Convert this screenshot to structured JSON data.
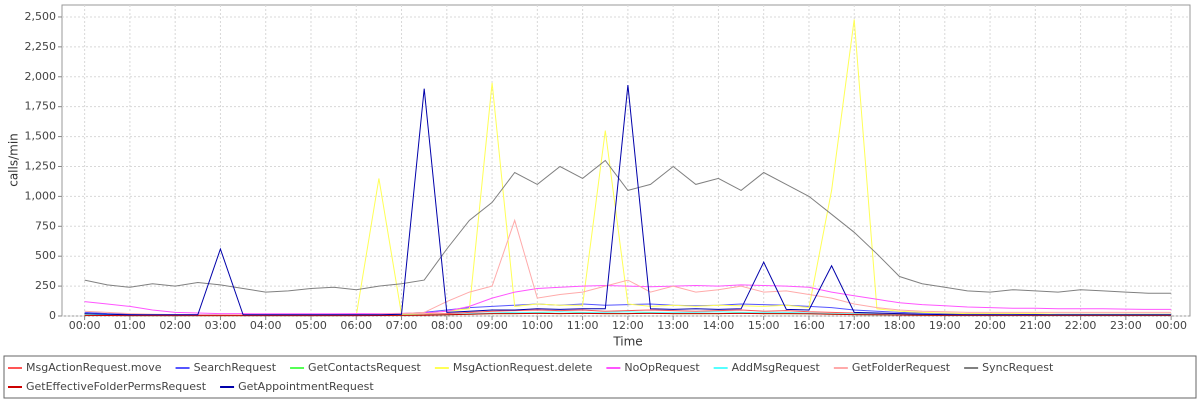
{
  "chart_data": {
    "type": "line",
    "x_label": "Time",
    "y_label": "calls/min",
    "x": [
      0,
      30,
      60,
      90,
      120,
      150,
      180,
      210,
      240,
      270,
      300,
      330,
      360,
      390,
      420,
      450,
      480,
      510,
      540,
      570,
      600,
      630,
      660,
      690,
      720,
      750,
      780,
      810,
      840,
      870,
      900,
      930,
      960,
      990,
      1020,
      1050,
      1080,
      1110,
      1140,
      1170,
      1200,
      1230,
      1260,
      1290,
      1320,
      1350,
      1380,
      1410,
      1440
    ],
    "xlim": [
      -30,
      1465
    ],
    "xticks": [
      {
        "value": 0,
        "label": "00:00"
      },
      {
        "value": 60,
        "label": "01:00"
      },
      {
        "value": 120,
        "label": "02:00"
      },
      {
        "value": 180,
        "label": "03:00"
      },
      {
        "value": 240,
        "label": "04:00"
      },
      {
        "value": 300,
        "label": "05:00"
      },
      {
        "value": 360,
        "label": "06:00"
      },
      {
        "value": 420,
        "label": "07:00"
      },
      {
        "value": 480,
        "label": "08:00"
      },
      {
        "value": 540,
        "label": "09:00"
      },
      {
        "value": 600,
        "label": "10:00"
      },
      {
        "value": 660,
        "label": "11:00"
      },
      {
        "value": 720,
        "label": "12:00"
      },
      {
        "value": 780,
        "label": "13:00"
      },
      {
        "value": 840,
        "label": "14:00"
      },
      {
        "value": 900,
        "label": "15:00"
      },
      {
        "value": 960,
        "label": "16:00"
      },
      {
        "value": 1020,
        "label": "17:00"
      },
      {
        "value": 1080,
        "label": "18:00"
      },
      {
        "value": 1140,
        "label": "19:00"
      },
      {
        "value": 1200,
        "label": "20:00"
      },
      {
        "value": 1260,
        "label": "21:00"
      },
      {
        "value": 1320,
        "label": "22:00"
      },
      {
        "value": 1380,
        "label": "23:00"
      },
      {
        "value": 1440,
        "label": "00:00"
      }
    ],
    "ylim": [
      0,
      2600
    ],
    "yticks": [
      0,
      250,
      500,
      750,
      {
        "value": 1000,
        "label": "1,000"
      },
      {
        "value": 1250,
        "label": "1,250"
      },
      {
        "value": 1500,
        "label": "1,500"
      },
      {
        "value": 1750,
        "label": "1,750"
      },
      {
        "value": 2000,
        "label": "2,000"
      },
      {
        "value": 2250,
        "label": "2,250"
      },
      {
        "value": 2500,
        "label": "2,500"
      }
    ],
    "grid": true,
    "series": [
      {
        "name": "MsgActionRequest.move",
        "color": "#ff5555",
        "values": [
          10,
          8,
          6,
          5,
          5,
          5,
          5,
          5,
          5,
          5,
          5,
          6,
          8,
          10,
          12,
          15,
          20,
          30,
          40,
          45,
          50,
          45,
          50,
          40,
          45,
          50,
          45,
          40,
          45,
          50,
          40,
          45,
          35,
          30,
          25,
          20,
          15,
          12,
          10,
          10,
          10,
          8,
          8,
          8,
          8,
          8,
          8,
          8,
          8
        ]
      },
      {
        "name": "SearchRequest",
        "color": "#5555ff",
        "values": [
          30,
          20,
          15,
          10,
          10,
          10,
          10,
          8,
          8,
          8,
          8,
          10,
          12,
          15,
          20,
          30,
          50,
          70,
          80,
          90,
          100,
          90,
          100,
          90,
          95,
          100,
          90,
          85,
          90,
          100,
          95,
          90,
          80,
          70,
          50,
          40,
          30,
          25,
          20,
          20,
          18,
          18,
          15,
          15,
          15,
          15,
          15,
          15,
          15
        ]
      },
      {
        "name": "GetContactsRequest",
        "color": "#55ff55",
        "values": [
          5,
          5,
          3,
          3,
          3,
          3,
          3,
          3,
          3,
          3,
          3,
          3,
          4,
          5,
          6,
          8,
          10,
          15,
          20,
          20,
          25,
          20,
          25,
          20,
          20,
          25,
          20,
          20,
          20,
          25,
          20,
          20,
          18,
          15,
          12,
          10,
          8,
          6,
          5,
          5,
          5,
          5,
          5,
          5,
          5,
          5,
          5,
          5,
          5
        ]
      },
      {
        "name": "MsgActionRequest.delete",
        "color": "#ffff55",
        "values": [
          20,
          10,
          8,
          5,
          5,
          5,
          5,
          5,
          5,
          5,
          5,
          5,
          5,
          1150,
          15,
          20,
          40,
          60,
          1950,
          80,
          100,
          90,
          90,
          1550,
          100,
          80,
          90,
          80,
          90,
          85,
          80,
          90,
          70,
          1050,
          2480,
          60,
          40,
          30,
          25,
          20,
          20,
          20,
          20,
          15,
          15,
          15,
          15,
          15,
          15
        ]
      },
      {
        "name": "NoOpRequest",
        "color": "#ff55ff",
        "values": [
          120,
          100,
          80,
          50,
          30,
          25,
          20,
          20,
          18,
          18,
          18,
          18,
          20,
          20,
          22,
          25,
          40,
          80,
          150,
          200,
          230,
          240,
          250,
          255,
          250,
          245,
          250,
          255,
          250,
          260,
          255,
          250,
          240,
          200,
          170,
          140,
          110,
          95,
          85,
          75,
          70,
          65,
          65,
          60,
          60,
          60,
          58,
          55,
          55
        ]
      },
      {
        "name": "AddMsgRequest",
        "color": "#55ffff",
        "values": [
          10,
          8,
          5,
          5,
          5,
          5,
          5,
          5,
          5,
          5,
          5,
          5,
          5,
          5,
          6,
          8,
          12,
          20,
          25,
          30,
          30,
          35,
          30,
          30,
          35,
          30,
          30,
          30,
          35,
          30,
          30,
          30,
          25,
          20,
          18,
          15,
          12,
          10,
          8,
          8,
          8,
          8,
          8,
          8,
          8,
          8,
          8,
          8,
          8
        ]
      },
      {
        "name": "GetFolderRequest",
        "color": "#ffaaaa",
        "values": [
          40,
          30,
          20,
          15,
          12,
          10,
          10,
          10,
          10,
          10,
          10,
          10,
          12,
          15,
          20,
          30,
          120,
          200,
          250,
          800,
          150,
          180,
          200,
          250,
          300,
          200,
          250,
          200,
          220,
          250,
          200,
          210,
          180,
          150,
          100,
          70,
          50,
          40,
          35,
          30,
          30,
          30,
          30,
          30,
          30,
          30,
          30,
          30,
          30
        ]
      },
      {
        "name": "SyncRequest",
        "color": "#808080",
        "values": [
          300,
          260,
          240,
          270,
          250,
          280,
          260,
          230,
          200,
          210,
          230,
          240,
          220,
          250,
          270,
          300,
          560,
          800,
          950,
          1200,
          1100,
          1250,
          1150,
          1300,
          1050,
          1100,
          1250,
          1100,
          1150,
          1050,
          1200,
          1100,
          1000,
          850,
          700,
          520,
          330,
          270,
          240,
          210,
          200,
          220,
          210,
          200,
          220,
          210,
          200,
          190,
          190
        ]
      },
      {
        "name": "GetEffectiveFolderPermsRequest",
        "color": "#cc0000",
        "values": [
          5,
          4,
          3,
          3,
          3,
          3,
          3,
          3,
          3,
          3,
          3,
          3,
          3,
          4,
          5,
          6,
          10,
          15,
          20,
          20,
          22,
          20,
          22,
          20,
          20,
          22,
          20,
          20,
          20,
          22,
          20,
          20,
          18,
          15,
          12,
          10,
          8,
          6,
          5,
          5,
          5,
          5,
          5,
          5,
          5,
          5,
          5,
          5,
          5
        ]
      },
      {
        "name": "GetAppointmentRequest",
        "color": "#0000aa",
        "values": [
          20,
          15,
          10,
          10,
          10,
          10,
          560,
          10,
          10,
          10,
          10,
          10,
          10,
          10,
          15,
          1900,
          30,
          40,
          50,
          50,
          60,
          55,
          60,
          60,
          1930,
          60,
          55,
          60,
          55,
          60,
          450,
          55,
          50,
          420,
          30,
          25,
          20,
          15,
          12,
          10,
          10,
          10,
          10,
          10,
          10,
          10,
          10,
          10,
          10
        ]
      }
    ]
  }
}
